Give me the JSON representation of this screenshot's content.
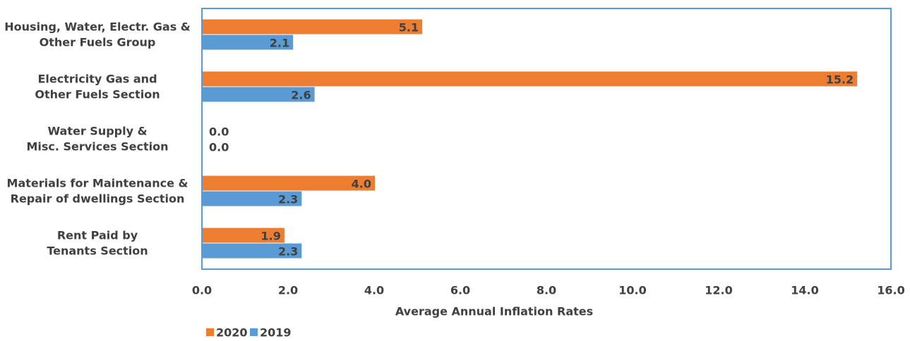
{
  "chart_data": {
    "type": "bar",
    "orientation": "horizontal",
    "categories": [
      [
        "Housing, Water, Electr. Gas &",
        "Other Fuels Group"
      ],
      [
        "Electricity Gas and",
        "Other Fuels Section"
      ],
      [
        "Water Supply &",
        "Misc. Services Section"
      ],
      [
        "Materials for Maintenance &",
        "Repair of dwellings Section"
      ],
      [
        "Rent Paid by",
        "Tenants Section"
      ]
    ],
    "series": [
      {
        "name": "2020",
        "color": "#ED7D31",
        "values": [
          5.1,
          15.2,
          0.0,
          4.0,
          1.9
        ],
        "labels": [
          "5.1",
          "15.2",
          "0.0",
          "4.0",
          "1.9"
        ]
      },
      {
        "name": "2019",
        "color": "#5B9BD5",
        "values": [
          2.1,
          2.6,
          0.0,
          2.3,
          2.3
        ],
        "labels": [
          "2.1",
          "2.6",
          "0.0",
          "2.3",
          "2.3"
        ]
      }
    ],
    "xlabel": "Average Annual Inflation Rates",
    "xlim": [
      0.0,
      16.0
    ],
    "xticks": [
      0.0,
      2.0,
      4.0,
      6.0,
      8.0,
      10.0,
      12.0,
      14.0,
      16.0
    ],
    "xtick_labels": [
      "0.0",
      "2.0",
      "4.0",
      "6.0",
      "8.0",
      "10.0",
      "12.0",
      "14.0",
      "16.0"
    ],
    "grid": false,
    "legend_position": "bottom-left",
    "plot_border_color": "#5B9BD5"
  }
}
